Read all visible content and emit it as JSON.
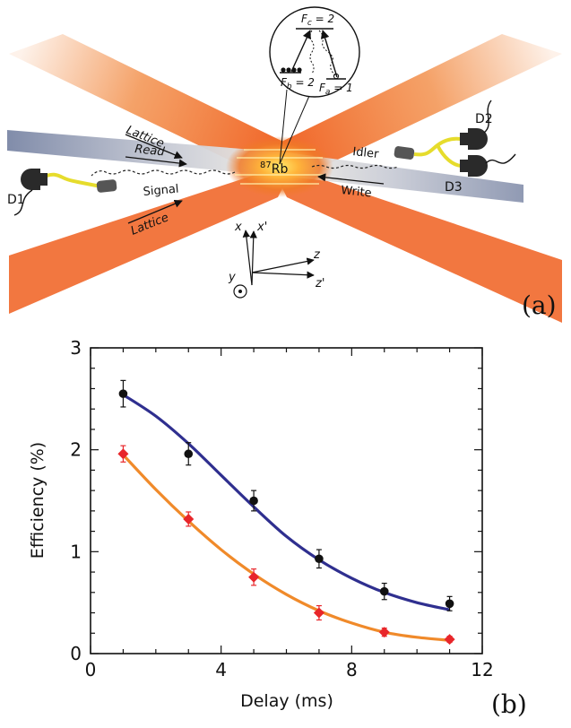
{
  "panel_a": {
    "label": "(a)",
    "beams": {
      "lattice_top": "Lattice",
      "lattice_bottom": "Lattice",
      "read": "Read",
      "write": "Write",
      "signal": "Signal",
      "idler": "Idler"
    },
    "atom_label": "87Rb",
    "atom_superscript": "87",
    "atom_symbol": "Rb",
    "detectors": {
      "d1": "D1",
      "d2": "D2",
      "d3": "D3"
    },
    "levels": {
      "fc": "F",
      "fc_sub": "c",
      "fc_val": " = 2",
      "fb": "F",
      "fb_sub": "b",
      "fb_val": " = 2",
      "fa": "F",
      "fa_sub": "a",
      "fa_val": " = 1"
    },
    "axes": {
      "x": "x",
      "x_prime": "x'",
      "y": "y",
      "z": "z",
      "z_prime": "z'"
    },
    "colors": {
      "lattice": "#f07a28",
      "probe": "#7b87a6",
      "fiber": "#e6dc2c",
      "detector": "#2a2a2a"
    }
  },
  "panel_b": {
    "label": "(b)"
  },
  "chart_data": {
    "type": "scatter",
    "title": "",
    "xlabel": "Delay (ms)",
    "ylabel": "Efficiency (%)",
    "xlim": [
      0,
      12
    ],
    "ylim": [
      0,
      3
    ],
    "xticks": [
      0,
      4,
      8,
      12
    ],
    "yticks": [
      0,
      1,
      2,
      3
    ],
    "grid": false,
    "series": [
      {
        "marker": "circle",
        "color": "#111111",
        "fit_color": "#2f2f8f",
        "x": [
          1,
          3,
          5,
          7,
          9,
          11
        ],
        "y": [
          2.55,
          1.96,
          1.5,
          0.93,
          0.61,
          0.49
        ],
        "err": [
          0.13,
          0.11,
          0.1,
          0.09,
          0.08,
          0.07
        ],
        "fit": {
          "x": [
            1,
            2,
            3,
            4,
            5,
            6,
            7,
            8,
            9,
            10,
            11
          ],
          "y": [
            2.54,
            2.33,
            2.06,
            1.75,
            1.44,
            1.15,
            0.92,
            0.74,
            0.6,
            0.5,
            0.43
          ]
        }
      },
      {
        "marker": "diamond",
        "color": "#e8262a",
        "fit_color": "#f08a2a",
        "x": [
          1,
          3,
          5,
          7,
          9,
          11
        ],
        "y": [
          1.96,
          1.32,
          0.75,
          0.4,
          0.21,
          0.14
        ],
        "err": [
          0.08,
          0.07,
          0.08,
          0.07,
          0.04,
          0.03
        ],
        "fit": {
          "x": [
            1,
            2,
            3,
            4,
            5,
            6,
            7,
            8,
            9,
            10,
            11
          ],
          "y": [
            1.95,
            1.61,
            1.3,
            1.02,
            0.78,
            0.58,
            0.42,
            0.3,
            0.21,
            0.16,
            0.13
          ]
        }
      }
    ]
  }
}
